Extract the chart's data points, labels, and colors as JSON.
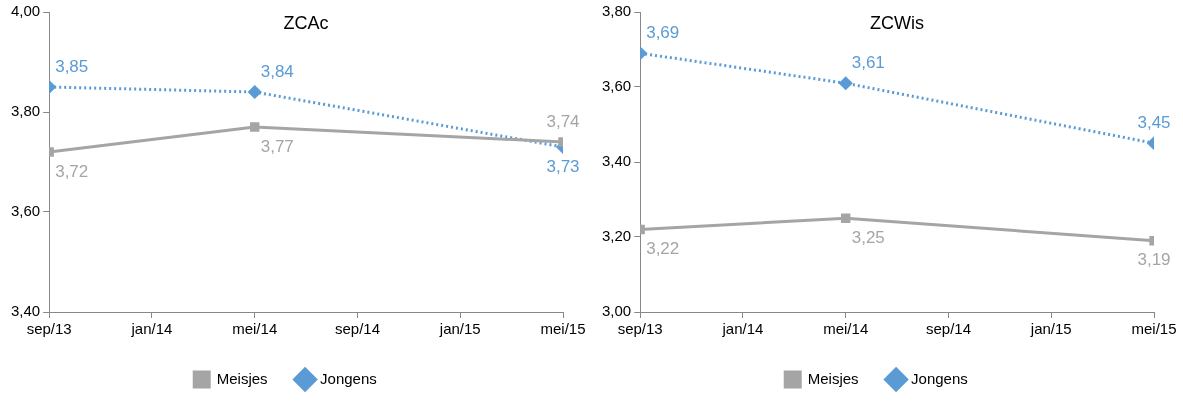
{
  "chart_data": [
    {
      "type": "line",
      "title": "ZCAc",
      "x": [
        "2013-09",
        "2014-05",
        "2015-05"
      ],
      "xlim": [
        "2013-09",
        "2015-05"
      ],
      "xticks": [
        {
          "value": "2013-09",
          "label": "sep/13"
        },
        {
          "value": "2014-01",
          "label": "jan/14"
        },
        {
          "value": "2014-05",
          "label": "mei/14"
        },
        {
          "value": "2014-09",
          "label": "sep/14"
        },
        {
          "value": "2015-01",
          "label": "jan/15"
        },
        {
          "value": "2015-05",
          "label": "mei/15"
        }
      ],
      "ylim": [
        3.4,
        4.0
      ],
      "yticks": [
        {
          "value": 3.4,
          "label": "3,40"
        },
        {
          "value": 3.6,
          "label": "3,60"
        },
        {
          "value": 3.8,
          "label": "3,80"
        },
        {
          "value": 4.0,
          "label": "4,00"
        }
      ],
      "series": [
        {
          "name": "Meisjes",
          "color": "#a5a5a5",
          "marker": "square",
          "line_style": "solid",
          "values": [
            3.72,
            3.77,
            3.74
          ],
          "value_labels": [
            "3,72",
            "3,77",
            "3,74"
          ]
        },
        {
          "name": "Jongens",
          "color": "#5b9bd5",
          "marker": "diamond",
          "line_style": "dotted",
          "values": [
            3.85,
            3.84,
            3.73
          ],
          "value_labels": [
            "3,85",
            "3,84",
            "3,73"
          ]
        }
      ],
      "grid": false,
      "legend": "bottom"
    },
    {
      "type": "line",
      "title": "ZCWis",
      "x": [
        "2013-09",
        "2014-05",
        "2015-05"
      ],
      "xlim": [
        "2013-09",
        "2015-05"
      ],
      "xticks": [
        {
          "value": "2013-09",
          "label": "sep/13"
        },
        {
          "value": "2014-01",
          "label": "jan/14"
        },
        {
          "value": "2014-05",
          "label": "mei/14"
        },
        {
          "value": "2014-09",
          "label": "sep/14"
        },
        {
          "value": "2015-01",
          "label": "jan/15"
        },
        {
          "value": "2015-05",
          "label": "mei/15"
        }
      ],
      "ylim": [
        3.0,
        3.8
      ],
      "yticks": [
        {
          "value": 3.0,
          "label": "3,00"
        },
        {
          "value": 3.2,
          "label": "3,20"
        },
        {
          "value": 3.4,
          "label": "3,40"
        },
        {
          "value": 3.6,
          "label": "3,60"
        },
        {
          "value": 3.8,
          "label": "3,80"
        }
      ],
      "series": [
        {
          "name": "Meisjes",
          "color": "#a5a5a5",
          "marker": "square",
          "line_style": "solid",
          "values": [
            3.22,
            3.25,
            3.19
          ],
          "value_labels": [
            "3,22",
            "3,25",
            "3,19"
          ]
        },
        {
          "name": "Jongens",
          "color": "#5b9bd5",
          "marker": "diamond",
          "line_style": "dotted",
          "values": [
            3.69,
            3.61,
            3.45
          ],
          "value_labels": [
            "3,69",
            "3,61",
            "3,45"
          ]
        }
      ],
      "grid": false,
      "legend": "bottom"
    }
  ]
}
